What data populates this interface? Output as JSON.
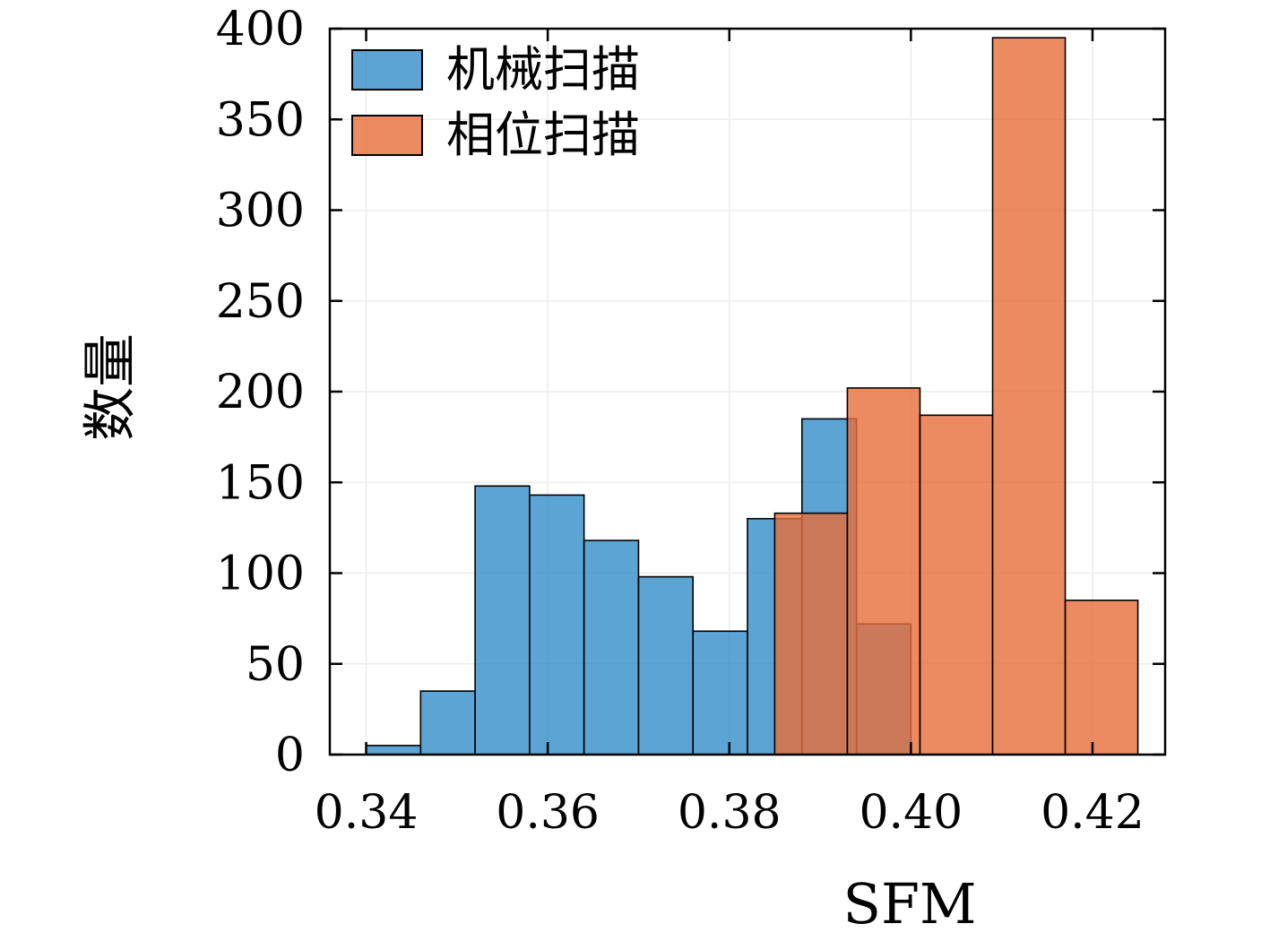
{
  "figure": {
    "background": "#ffffff",
    "frame_color": "#000000",
    "grid_color": "#ececec"
  },
  "chart_data": {
    "type": "bar",
    "subtype": "histogram-overlaid",
    "title": "",
    "xlabel": "SFM",
    "ylabel": "数量",
    "xlim": [
      0.336,
      0.428
    ],
    "ylim": [
      0,
      400
    ],
    "xticks": [
      0.34,
      0.36,
      0.38,
      0.4,
      0.42
    ],
    "yticks": [
      0,
      50,
      100,
      150,
      200,
      250,
      300,
      350,
      400
    ],
    "grid": true,
    "legend_position": "upper-left",
    "series": [
      {
        "name": "机械扫描",
        "color": "#2686c4",
        "fill_opacity": 0.75,
        "edge_color": "#000000",
        "bin_edges": [
          0.34,
          0.346,
          0.352,
          0.358,
          0.364,
          0.37,
          0.376,
          0.382,
          0.388,
          0.394,
          0.4
        ],
        "counts": [
          5,
          35,
          148,
          143,
          118,
          98,
          68,
          130,
          185,
          72
        ]
      },
      {
        "name": "相位扫描",
        "color": "#e76e3b",
        "fill_opacity": 0.8,
        "edge_color": "#000000",
        "bin_edges": [
          0.385,
          0.393,
          0.401,
          0.409,
          0.417,
          0.425
        ],
        "counts": [
          133,
          202,
          187,
          395,
          85
        ]
      }
    ]
  }
}
